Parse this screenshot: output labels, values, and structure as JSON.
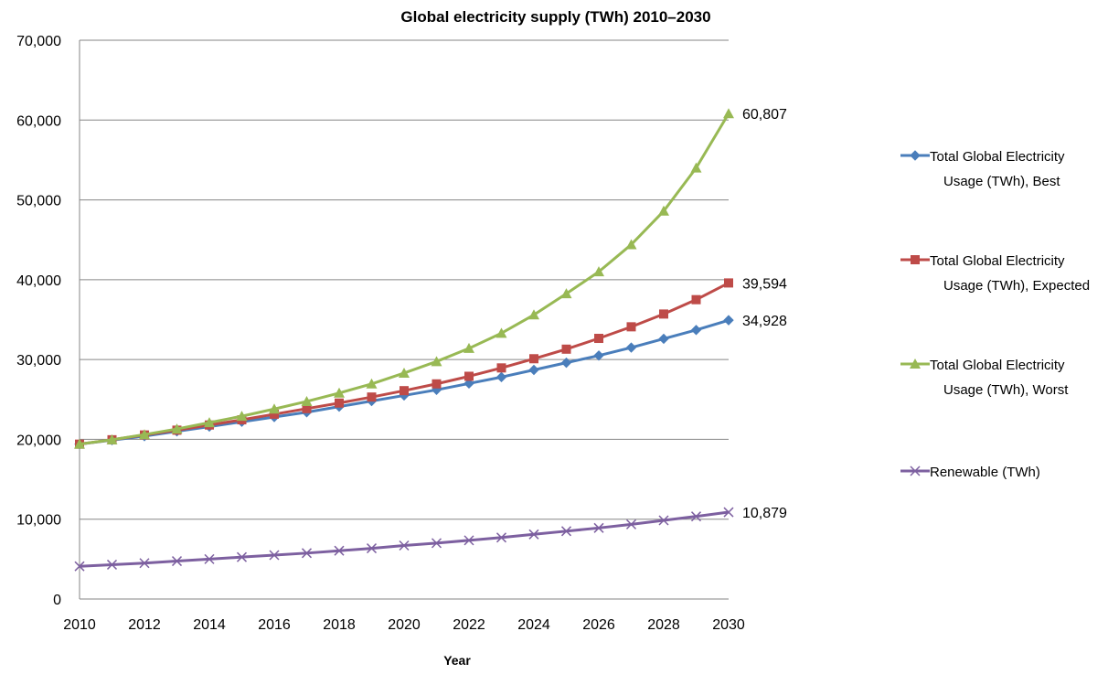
{
  "chart_data": {
    "type": "line",
    "title": "Global electricity supply (TWh) 2010–2030",
    "xlabel": "Year",
    "ylabel": "",
    "ylim": [
      0,
      70000
    ],
    "yticks": [
      "0",
      "10,000",
      "20,000",
      "30,000",
      "40,000",
      "50,000",
      "60,000",
      "70,000"
    ],
    "xticks": [
      "2010",
      "2012",
      "2014",
      "2016",
      "2018",
      "2020",
      "2022",
      "2024",
      "2026",
      "2028",
      "2030"
    ],
    "grid": "horizontal",
    "legend_position": "right",
    "x": [
      2010,
      2011,
      2012,
      2013,
      2014,
      2015,
      2016,
      2017,
      2018,
      2019,
      2020,
      2021,
      2022,
      2023,
      2024,
      2025,
      2026,
      2027,
      2028,
      2029,
      2030
    ],
    "series": [
      {
        "name": "Total Global Electricity Usage (TWh), Best",
        "legend_lines": [
          "Total Global Electricity",
          "Usage (TWh),  Best"
        ],
        "color": "#4A7EBB",
        "marker": "diamond",
        "end_label": "34,928",
        "values": [
          19400,
          19900,
          20400,
          21000,
          21600,
          22200,
          22800,
          23400,
          24100,
          24800,
          25500,
          26200,
          27000,
          27800,
          28700,
          29600,
          30500,
          31500,
          32600,
          33700,
          34928
        ]
      },
      {
        "name": "Total Global Electricity Usage (TWh), Expected",
        "legend_lines": [
          "Total Global Electricity",
          "Usage (TWh),  Expected"
        ],
        "color": "#BE4B48",
        "marker": "square",
        "end_label": "39,594",
        "values": [
          19400,
          19950,
          20550,
          21150,
          21800,
          22450,
          23150,
          23850,
          24550,
          25300,
          26100,
          26950,
          27900,
          28950,
          30100,
          31300,
          32650,
          34100,
          35700,
          37500,
          39594
        ]
      },
      {
        "name": "Total Global Electricity Usage (TWh), Worst",
        "legend_lines": [
          "Total Global Electricity",
          "Usage (TWh),  Worst"
        ],
        "color": "#98B954",
        "marker": "triangle",
        "end_label": "60,807",
        "values": [
          19400,
          19950,
          20600,
          21300,
          22100,
          22900,
          23800,
          24750,
          25800,
          26950,
          28300,
          29750,
          31400,
          33300,
          35600,
          38250,
          41000,
          44400,
          48600,
          54000,
          60807
        ]
      },
      {
        "name": "Renewable (TWh)",
        "legend_lines": [
          "Renewable  (TWh)"
        ],
        "color": "#7D60A0",
        "marker": "x",
        "end_label": "10,879",
        "values": [
          4100,
          4300,
          4500,
          4750,
          5000,
          5250,
          5500,
          5750,
          6050,
          6350,
          6700,
          7000,
          7350,
          7700,
          8100,
          8500,
          8900,
          9350,
          9850,
          10350,
          10879
        ]
      }
    ]
  }
}
